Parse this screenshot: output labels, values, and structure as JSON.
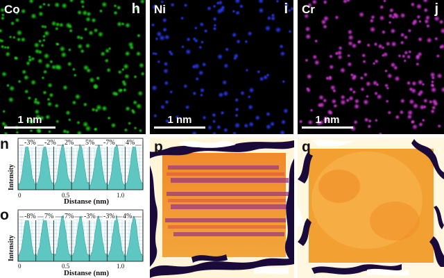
{
  "maps": [
    {
      "id": "co",
      "element": "Co",
      "letter": "h",
      "color": "#1fd01a",
      "scale": "1 nm"
    },
    {
      "id": "ni",
      "element": "Ni",
      "letter": "i",
      "color": "#2b3cff",
      "scale": "1 nm"
    },
    {
      "id": "cr",
      "element": "Cr",
      "letter": "j",
      "color": "#d83adf",
      "scale": "1 nm"
    }
  ],
  "profiles": [
    {
      "id": "n",
      "letter": "n",
      "ylabel": "Intensity",
      "xlabel": "Distanse (nm)",
      "ticks": [
        "0",
        "0.5",
        "1.0"
      ],
      "strains": [
        "-3%",
        "-2%",
        "2%",
        "5%",
        "-7%",
        "4%"
      ]
    },
    {
      "id": "o",
      "letter": "o",
      "ylabel": "Intensity",
      "xlabel": "Distanse (nm)",
      "ticks": [
        "0",
        "0.5",
        "1.0"
      ],
      "strains": [
        "-8%",
        "7%",
        "7%",
        "-3%",
        "-3%",
        "4%"
      ]
    }
  ],
  "strain_maps": [
    {
      "id": "p",
      "letter": "p"
    },
    {
      "id": "q",
      "letter": "q"
    }
  ],
  "colors": {
    "profile_fill": "#5fc7c2",
    "grid": "#9ad6e8",
    "strain_hot": "#f5a020",
    "strain_dark": "#1a0a3a"
  }
}
